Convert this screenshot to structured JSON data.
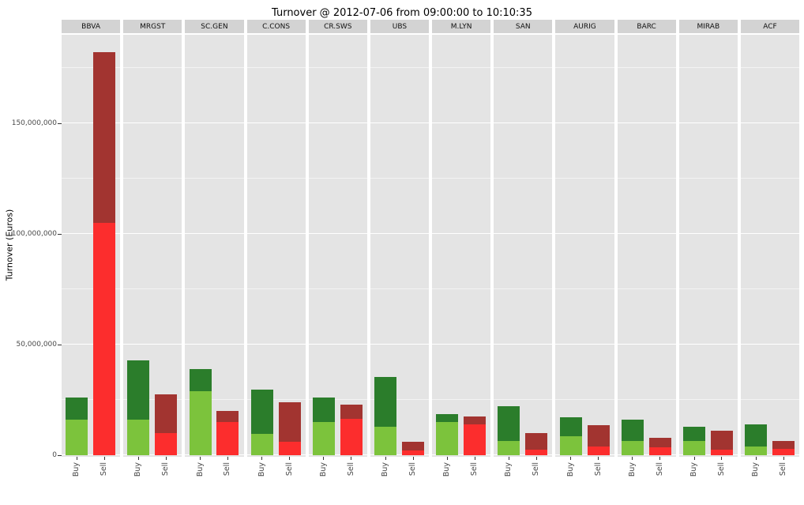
{
  "chart_data": {
    "type": "bar",
    "title": "Turnover @ 2012-07-06 from 09:00:00 to 10:10:35",
    "ylabel": "Turnover (Euros)",
    "xlabel": "",
    "facets": [
      "BBVA",
      "MRGST",
      "SC.GEN",
      "C.CONS",
      "CR.SWS",
      "UBS",
      "M.LYN",
      "SAN",
      "AURIG",
      "BARC",
      "MIRAB",
      "ACF"
    ],
    "categories": [
      "Buy",
      "Sell"
    ],
    "legend": "none",
    "grid": "on",
    "ylim": [
      0,
      190000000
    ],
    "yticks": [
      0,
      50000000,
      100000000,
      150000000
    ],
    "ytick_labels": [
      "0",
      "50,000,000",
      "100,000,000",
      "150,000,000"
    ],
    "yticks_minor": [
      25000000,
      75000000,
      125000000,
      175000000
    ],
    "palette": {
      "light_green": "#7cc33c",
      "dark_green": "#2b7d2b",
      "bright_red": "#fc2d2d",
      "dark_red": "#a23430",
      "panel_bg": "#e4e4e4",
      "strip_bg": "#d3d3d3"
    },
    "panels": [
      {
        "facet": "BBVA",
        "bars": [
          {
            "label": "Buy",
            "segments": [
              {
                "role": "light_green",
                "value": 16000000
              },
              {
                "role": "dark_green",
                "value": 10000000
              }
            ]
          },
          {
            "label": "Sell",
            "segments": [
              {
                "role": "bright_red",
                "value": 105000000
              },
              {
                "role": "dark_red",
                "value": 77000000
              }
            ]
          }
        ]
      },
      {
        "facet": "MRGST",
        "bars": [
          {
            "label": "Buy",
            "segments": [
              {
                "role": "light_green",
                "value": 16000000
              },
              {
                "role": "dark_green",
                "value": 27000000
              }
            ]
          },
          {
            "label": "Sell",
            "segments": [
              {
                "role": "bright_red",
                "value": 10000000
              },
              {
                "role": "dark_red",
                "value": 17500000
              }
            ]
          }
        ]
      },
      {
        "facet": "SC.GEN",
        "bars": [
          {
            "label": "Buy",
            "segments": [
              {
                "role": "light_green",
                "value": 29000000
              },
              {
                "role": "dark_green",
                "value": 10000000
              }
            ]
          },
          {
            "label": "Sell",
            "segments": [
              {
                "role": "bright_red",
                "value": 15000000
              },
              {
                "role": "dark_red",
                "value": 5000000
              }
            ]
          }
        ]
      },
      {
        "facet": "C.CONS",
        "bars": [
          {
            "label": "Buy",
            "segments": [
              {
                "role": "light_green",
                "value": 9500000
              },
              {
                "role": "dark_green",
                "value": 20000000
              }
            ]
          },
          {
            "label": "Sell",
            "segments": [
              {
                "role": "bright_red",
                "value": 6000000
              },
              {
                "role": "dark_red",
                "value": 18000000
              }
            ]
          }
        ]
      },
      {
        "facet": "CR.SWS",
        "bars": [
          {
            "label": "Buy",
            "segments": [
              {
                "role": "light_green",
                "value": 15000000
              },
              {
                "role": "dark_green",
                "value": 11000000
              }
            ]
          },
          {
            "label": "Sell",
            "segments": [
              {
                "role": "bright_red",
                "value": 16500000
              },
              {
                "role": "dark_red",
                "value": 6500000
              }
            ]
          }
        ]
      },
      {
        "facet": "UBS",
        "bars": [
          {
            "label": "Buy",
            "segments": [
              {
                "role": "light_green",
                "value": 13000000
              },
              {
                "role": "dark_green",
                "value": 22500000
              }
            ]
          },
          {
            "label": "Sell",
            "segments": [
              {
                "role": "bright_red",
                "value": 2000000
              },
              {
                "role": "dark_red",
                "value": 4000000
              }
            ]
          }
        ]
      },
      {
        "facet": "M.LYN",
        "bars": [
          {
            "label": "Buy",
            "segments": [
              {
                "role": "light_green",
                "value": 15000000
              },
              {
                "role": "dark_green",
                "value": 3500000
              }
            ]
          },
          {
            "label": "Sell",
            "segments": [
              {
                "role": "bright_red",
                "value": 14000000
              },
              {
                "role": "dark_red",
                "value": 3500000
              }
            ]
          }
        ]
      },
      {
        "facet": "SAN",
        "bars": [
          {
            "label": "Buy",
            "segments": [
              {
                "role": "light_green",
                "value": 6500000
              },
              {
                "role": "dark_green",
                "value": 15500000
              }
            ]
          },
          {
            "label": "Sell",
            "segments": [
              {
                "role": "bright_red",
                "value": 2500000
              },
              {
                "role": "dark_red",
                "value": 7500000
              }
            ]
          }
        ]
      },
      {
        "facet": "AURIG",
        "bars": [
          {
            "label": "Buy",
            "segments": [
              {
                "role": "light_green",
                "value": 8500000
              },
              {
                "role": "dark_green",
                "value": 8500000
              }
            ]
          },
          {
            "label": "Sell",
            "segments": [
              {
                "role": "bright_red",
                "value": 4000000
              },
              {
                "role": "dark_red",
                "value": 9500000
              }
            ]
          }
        ]
      },
      {
        "facet": "BARC",
        "bars": [
          {
            "label": "Buy",
            "segments": [
              {
                "role": "light_green",
                "value": 6500000
              },
              {
                "role": "dark_green",
                "value": 9500000
              }
            ]
          },
          {
            "label": "Sell",
            "segments": [
              {
                "role": "bright_red",
                "value": 3500000
              },
              {
                "role": "dark_red",
                "value": 4500000
              }
            ]
          }
        ]
      },
      {
        "facet": "MIRAB",
        "bars": [
          {
            "label": "Buy",
            "segments": [
              {
                "role": "light_green",
                "value": 6500000
              },
              {
                "role": "dark_green",
                "value": 6500000
              }
            ]
          },
          {
            "label": "Sell",
            "segments": [
              {
                "role": "bright_red",
                "value": 2500000
              },
              {
                "role": "dark_red",
                "value": 8500000
              }
            ]
          }
        ]
      },
      {
        "facet": "ACF",
        "bars": [
          {
            "label": "Buy",
            "segments": [
              {
                "role": "light_green",
                "value": 4000000
              },
              {
                "role": "dark_green",
                "value": 10000000
              }
            ]
          },
          {
            "label": "Sell",
            "segments": [
              {
                "role": "bright_red",
                "value": 3000000
              },
              {
                "role": "dark_red",
                "value": 3500000
              }
            ]
          }
        ]
      }
    ]
  }
}
